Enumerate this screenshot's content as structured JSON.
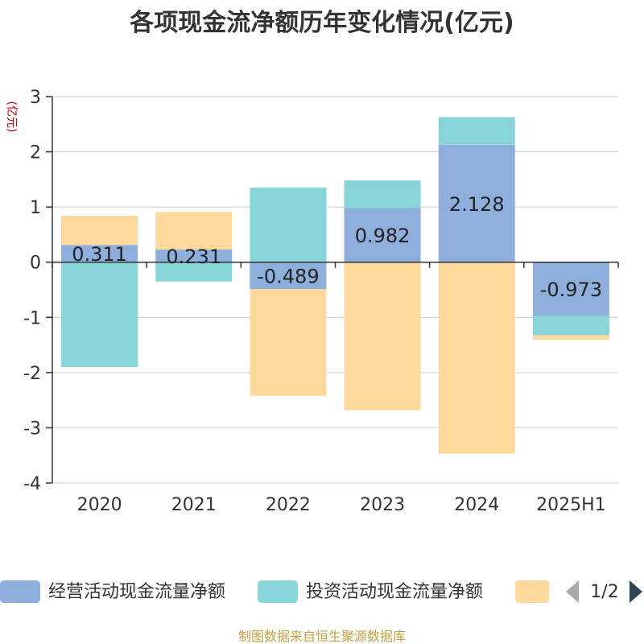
{
  "chart_data": {
    "type": "bar",
    "stacked": true,
    "title": "各项现金流净额历年变化情况(亿元)",
    "ylabel": "(亿元)",
    "categories": [
      "2020",
      "2021",
      "2022",
      "2023",
      "2024",
      "2025H1"
    ],
    "ylim": [
      -4,
      3
    ],
    "yticks": [
      3,
      2,
      1,
      0,
      -1,
      -2,
      -3,
      -4
    ],
    "grid": true,
    "series": [
      {
        "name": "经营活动现金流量净额",
        "color": "#8eaedb",
        "values": [
          0.311,
          0.231,
          -0.489,
          0.982,
          2.128,
          -0.973
        ]
      },
      {
        "name": "投资活动现金流量净额",
        "color": "#88d5d9",
        "values": [
          -1.9,
          -0.35,
          1.35,
          0.5,
          0.5,
          -0.35
        ]
      },
      {
        "name": "",
        "color": "#fed99c",
        "values": [
          0.53,
          0.68,
          -1.93,
          -2.68,
          -3.47,
          -0.08
        ]
      }
    ],
    "data_labels": [
      "0.311",
      "0.231",
      "-0.489",
      "0.982",
      "2.128",
      "-0.973"
    ],
    "legend": {
      "position": "bottom",
      "page": "1/2"
    },
    "source": "制图数据来自恒生聚源数据库"
  }
}
